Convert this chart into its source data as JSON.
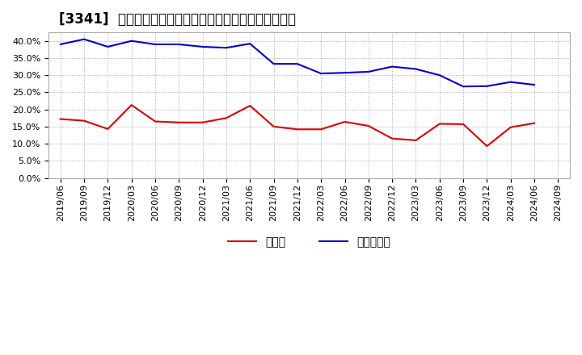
{
  "title": "[3341]  現適金、有利子負債の総資産に対する比率の推移",
  "x_labels": [
    "2019/06",
    "2019/09",
    "2019/12",
    "2020/03",
    "2020/06",
    "2020/09",
    "2020/12",
    "2021/03",
    "2021/06",
    "2021/09",
    "2021/12",
    "2022/03",
    "2022/06",
    "2022/09",
    "2022/12",
    "2023/03",
    "2023/06",
    "2023/09",
    "2023/12",
    "2024/03",
    "2024/06",
    "2024/09"
  ],
  "cash": [
    0.172,
    0.167,
    0.143,
    0.213,
    0.165,
    0.162,
    0.162,
    0.175,
    0.211,
    0.15,
    0.142,
    0.142,
    0.164,
    0.152,
    0.115,
    0.11,
    0.158,
    0.157,
    0.093,
    0.148,
    0.16,
    null
  ],
  "debt": [
    0.39,
    0.405,
    0.383,
    0.4,
    0.39,
    0.39,
    0.383,
    0.38,
    0.392,
    0.333,
    0.333,
    0.305,
    0.307,
    0.31,
    0.325,
    0.318,
    0.3,
    0.267,
    0.268,
    0.28,
    0.272,
    null
  ],
  "cash_color": "#dd0000",
  "debt_color": "#0000cc",
  "legend_cash": "現適金",
  "legend_debt": "有利子負債",
  "ylim": [
    0.0,
    0.425
  ],
  "yticks": [
    0.0,
    0.05,
    0.1,
    0.15,
    0.2,
    0.25,
    0.3,
    0.35,
    0.4
  ],
  "bg_color": "#ffffff",
  "plot_bg_color": "#ffffff",
  "grid_color": "#999999",
  "title_fontsize": 12,
  "axis_fontsize": 8,
  "legend_fontsize": 10
}
